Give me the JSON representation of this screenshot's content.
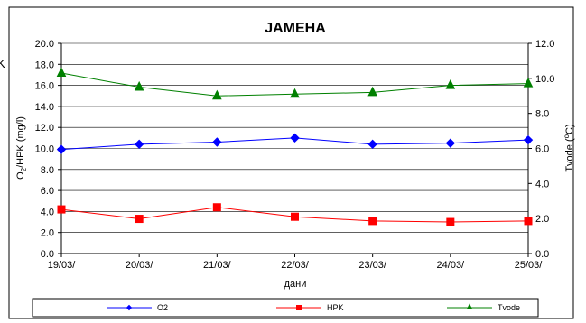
{
  "chart_data": {
    "type": "line",
    "title": "ЈАМЕНА",
    "xlabel": "дани",
    "ylabel_left_parts": [
      "O",
      "2",
      "/HPK (mg/l)"
    ],
    "ylabel_right_parts": [
      "Tvode (",
      "o",
      "C)"
    ],
    "categories": [
      "19/03/",
      "20/03/",
      "21/03/",
      "22/03/",
      "23/03/",
      "24/03/",
      "25/03/"
    ],
    "y_left": {
      "min": 0,
      "max": 20,
      "step": 2,
      "tick_labels": [
        "0.0",
        "2.0",
        "4.0",
        "6.0",
        "8.0",
        "10.0",
        "12.0",
        "14.0",
        "16.0",
        "18.0",
        "20.0"
      ]
    },
    "y_right": {
      "min": 0,
      "max": 12,
      "step": 2,
      "tick_labels": [
        "0.0",
        "2.0",
        "4.0",
        "6.0",
        "8.0",
        "10.0",
        "12.0"
      ]
    },
    "grid": true,
    "legend_position": "bottom",
    "series": [
      {
        "name": "O2",
        "axis": "left",
        "color": "#0000ff",
        "marker": "diamond",
        "values": [
          9.9,
          10.4,
          10.6,
          11.0,
          10.4,
          10.5,
          10.8
        ]
      },
      {
        "name": "HPK",
        "axis": "left",
        "color": "#ff0000",
        "marker": "square",
        "values": [
          4.2,
          3.3,
          4.4,
          3.5,
          3.1,
          3.0,
          3.1
        ]
      },
      {
        "name": "Tvode",
        "axis": "right",
        "color": "#008000",
        "marker": "triangle",
        "values": [
          10.3,
          9.5,
          9.0,
          9.1,
          9.2,
          9.6,
          9.7
        ]
      }
    ],
    "clipped_left_text": "K"
  }
}
